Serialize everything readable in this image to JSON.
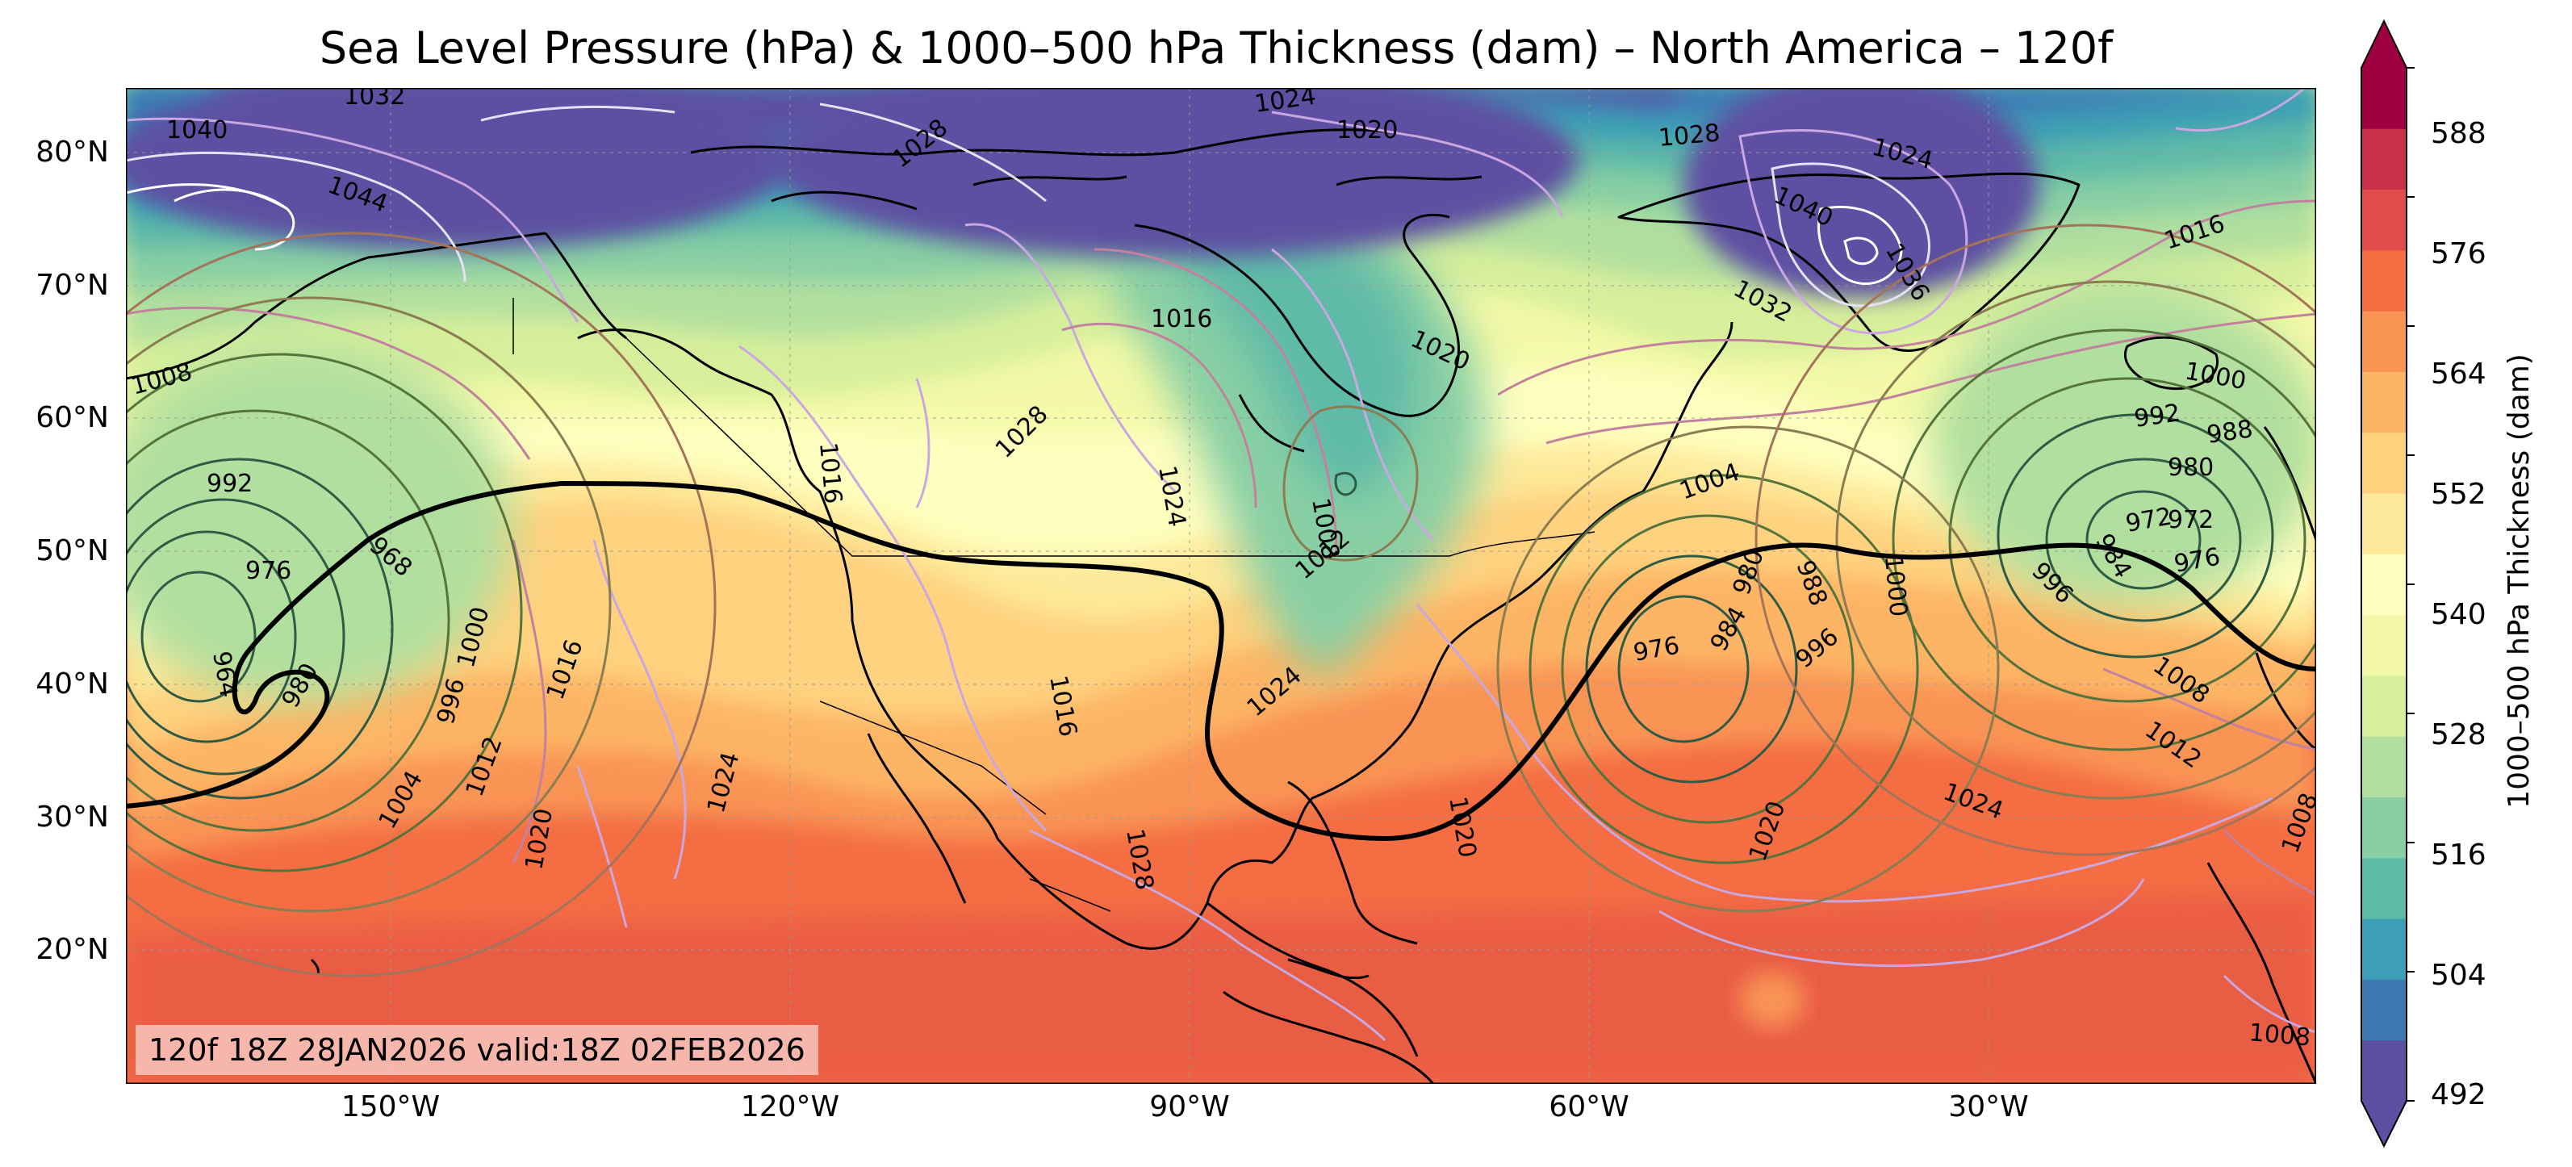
{
  "title": "Sea Level Pressure (hPa) & 1000–500 hPa Thickness (dam) – North America – 120f",
  "valid_stamp": "120f 18Z 28JAN2026 valid:18Z 02FEB2026",
  "axes": {
    "lat_labels": [
      "80°N",
      "70°N",
      "60°N",
      "50°N",
      "40°N",
      "30°N",
      "20°N"
    ],
    "lon_labels": [
      "150°W",
      "120°W",
      "90°W",
      "60°W",
      "30°W"
    ]
  },
  "colorbar": {
    "label": "1000–500 hPa Thickness (dam)",
    "ticks": [
      "588",
      "576",
      "564",
      "552",
      "540",
      "528",
      "516",
      "504",
      "492"
    ],
    "colors": [
      "#5e4fa2",
      "#3e79b5",
      "#3d9fb5",
      "#5fbaa8",
      "#88cfa4",
      "#b1df9f",
      "#d7ef9b",
      "#f3f9a7",
      "#fefebe",
      "#fee99a",
      "#fed27f",
      "#fdb565",
      "#f99454",
      "#f46d43",
      "#e04c4a",
      "#c83148",
      "#9e0142"
    ]
  },
  "slp_labels": [
    {
      "text": "1032"
    },
    {
      "text": "1040"
    },
    {
      "text": "1044"
    },
    {
      "text": "1024"
    },
    {
      "text": "1020"
    },
    {
      "text": "1028"
    },
    {
      "text": "1028"
    },
    {
      "text": "1024"
    },
    {
      "text": "1040"
    },
    {
      "text": "1036"
    },
    {
      "text": "1032"
    },
    {
      "text": "1016"
    },
    {
      "text": "1016"
    },
    {
      "text": "1020"
    },
    {
      "text": "1008"
    },
    {
      "text": "1000"
    },
    {
      "text": "992"
    },
    {
      "text": "988"
    },
    {
      "text": "980"
    },
    {
      "text": "972"
    },
    {
      "text": "976"
    },
    {
      "text": "984"
    },
    {
      "text": "996"
    },
    {
      "text": "1028"
    },
    {
      "text": "1024"
    },
    {
      "text": "1016"
    },
    {
      "text": "1008"
    },
    {
      "text": "1012"
    },
    {
      "text": "1004"
    },
    {
      "text": "992"
    },
    {
      "text": "968"
    },
    {
      "text": "976"
    },
    {
      "text": "964"
    },
    {
      "text": "980"
    },
    {
      "text": "1000"
    },
    {
      "text": "996"
    },
    {
      "text": "1016"
    },
    {
      "text": "1012"
    },
    {
      "text": "1004"
    },
    {
      "text": "1020"
    },
    {
      "text": "1024"
    },
    {
      "text": "1016"
    },
    {
      "text": "1024"
    },
    {
      "text": "1028"
    },
    {
      "text": "1020"
    },
    {
      "text": "976"
    },
    {
      "text": "984"
    },
    {
      "text": "980"
    },
    {
      "text": "988"
    },
    {
      "text": "996"
    },
    {
      "text": "1000"
    },
    {
      "text": "1008"
    },
    {
      "text": "1012"
    },
    {
      "text": "1020"
    },
    {
      "text": "1024"
    },
    {
      "text": "1008"
    },
    {
      "text": "1008"
    },
    {
      "text": "972"
    }
  ]
}
